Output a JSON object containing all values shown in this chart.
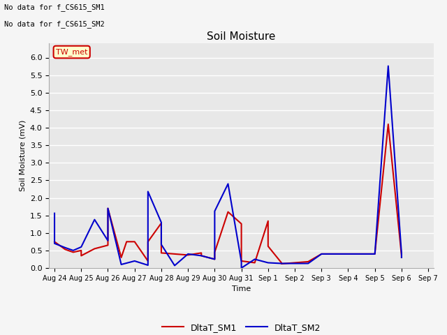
{
  "title": "Soil Moisture",
  "ylabel": "Soil Moisture (mV)",
  "xlabel": "Time",
  "no_data_text_1": "No data for f_CS615_SM1",
  "no_data_text_2": "No data for f_CS615_SM2",
  "tw_met_label": "TW_met",
  "ylim": [
    0.0,
    6.4
  ],
  "yticks": [
    0.0,
    0.5,
    1.0,
    1.5,
    2.0,
    2.5,
    3.0,
    3.5,
    4.0,
    4.5,
    5.0,
    5.5,
    6.0
  ],
  "bg_color": "#e8e8e8",
  "grid_color": "#ffffff",
  "sm1_color": "#cc0000",
  "sm2_color": "#0000cc",
  "sm1_label": "DltaT_SM1",
  "sm2_label": "DltaT_SM2",
  "sm1_x": [
    0,
    0.4,
    0.7,
    1.0,
    1.0,
    1.5,
    2.0,
    2.0,
    2.5,
    2.7,
    3.0,
    3.5,
    3.5,
    4.0,
    4.0,
    4.5,
    5.0,
    5.5,
    5.5,
    6.0,
    6.0,
    6.5,
    7.0,
    7.0,
    7.5,
    8.0,
    8.0,
    8.5,
    8.5,
    9.0,
    9.5,
    10.0,
    10.5,
    11.0,
    11.5,
    12.0,
    12.5,
    13.0,
    13.0
  ],
  "sm1_y": [
    0.75,
    0.53,
    0.45,
    0.5,
    0.35,
    0.55,
    0.65,
    1.7,
    0.3,
    0.75,
    0.75,
    0.2,
    0.75,
    1.28,
    0.43,
    0.4,
    0.37,
    0.43,
    0.35,
    0.25,
    0.45,
    1.6,
    1.26,
    0.2,
    0.15,
    1.34,
    0.62,
    0.15,
    0.12,
    0.15,
    0.18,
    0.4,
    0.4,
    0.4,
    0.4,
    0.4,
    4.1,
    0.35,
    0.3
  ],
  "sm2_x": [
    0,
    0,
    0.4,
    0.7,
    1.0,
    1.5,
    2.0,
    2.0,
    2.5,
    3.0,
    3.5,
    3.5,
    4.0,
    4.0,
    4.5,
    5.0,
    5.5,
    6.0,
    6.0,
    6.5,
    7.0,
    7.0,
    7.5,
    8.0,
    8.5,
    9.0,
    9.5,
    10.0,
    10.5,
    11.0,
    11.5,
    12.0,
    12.5,
    13.0,
    13.0
  ],
  "sm2_y": [
    1.56,
    0.7,
    0.58,
    0.5,
    0.6,
    1.38,
    0.78,
    1.7,
    0.1,
    0.2,
    0.08,
    2.18,
    1.3,
    0.67,
    0.07,
    0.4,
    0.35,
    0.25,
    1.62,
    2.4,
    0.18,
    0.0,
    0.25,
    0.15,
    0.13,
    0.13,
    0.13,
    0.4,
    0.4,
    0.4,
    0.4,
    0.4,
    5.76,
    0.4,
    0.3
  ],
  "xtick_labels": [
    "Aug 24",
    "Aug 25",
    "Aug 26",
    "Aug 27",
    "Aug 28",
    "Aug 29",
    "Aug 30",
    "Aug 31",
    "Sep 1",
    "Sep 2",
    "Sep 3",
    "Sep 4",
    "Sep 5",
    "Sep 6",
    "Sep 7"
  ],
  "xtick_positions": [
    0,
    1,
    2,
    3,
    4,
    5,
    6,
    7,
    8,
    9,
    10,
    11,
    12,
    13,
    14
  ],
  "fig_width": 6.4,
  "fig_height": 4.8,
  "dpi": 100
}
